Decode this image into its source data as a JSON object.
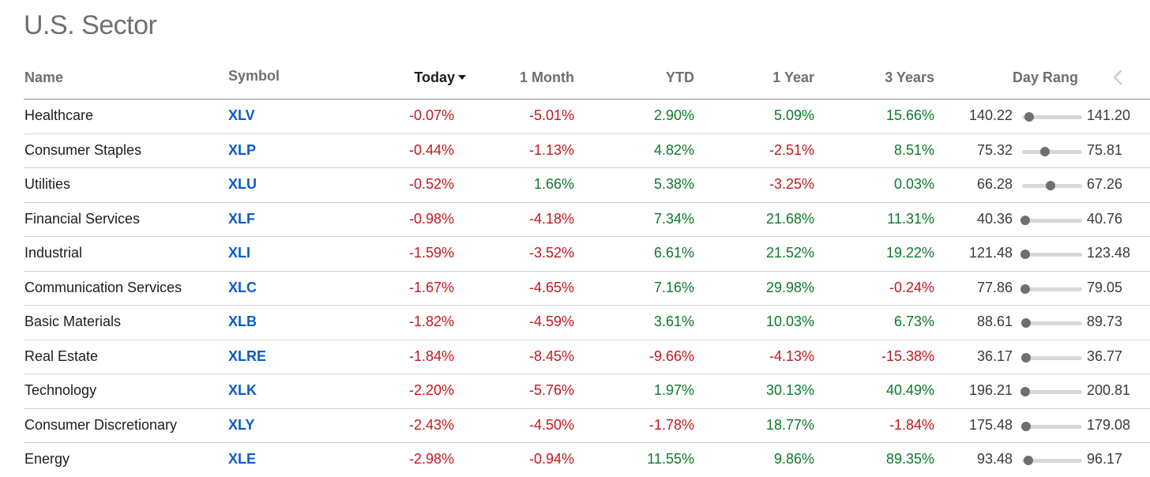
{
  "title": "U.S. Sector",
  "columns": {
    "name": "Name",
    "symbol": "Symbol",
    "today": "Today",
    "month": "1 Month",
    "ytd": "YTD",
    "year": "1 Year",
    "three_years": "3 Years",
    "day_range": "Day Rang"
  },
  "colors": {
    "positive": "#0b7a2a",
    "negative": "#c2171d",
    "symbol": "#0a5dc8"
  },
  "rows": [
    {
      "name": "Healthcare",
      "symbol": "XLV",
      "today": "-0.07%",
      "month": "-5.01%",
      "ytd": "2.90%",
      "year": "5.09%",
      "three_years": "15.66%",
      "low": "140.22",
      "high": "141.20",
      "position": 0.12
    },
    {
      "name": "Consumer Staples",
      "symbol": "XLP",
      "today": "-0.44%",
      "month": "-1.13%",
      "ytd": "4.82%",
      "year": "-2.51%",
      "three_years": "8.51%",
      "low": "75.32",
      "high": "75.81",
      "position": 0.38
    },
    {
      "name": "Utilities",
      "symbol": "XLU",
      "today": "-0.52%",
      "month": "1.66%",
      "ytd": "5.38%",
      "year": "-3.25%",
      "three_years": "0.03%",
      "low": "66.28",
      "high": "67.26",
      "position": 0.47
    },
    {
      "name": "Financial Services",
      "symbol": "XLF",
      "today": "-0.98%",
      "month": "-4.18%",
      "ytd": "7.34%",
      "year": "21.68%",
      "three_years": "11.31%",
      "low": "40.36",
      "high": "40.76",
      "position": 0.05
    },
    {
      "name": "Industrial",
      "symbol": "XLI",
      "today": "-1.59%",
      "month": "-3.52%",
      "ytd": "6.61%",
      "year": "21.52%",
      "three_years": "19.22%",
      "low": "121.48",
      "high": "123.48",
      "position": 0.05
    },
    {
      "name": "Communication Services",
      "symbol": "XLC",
      "today": "-1.67%",
      "month": "-4.65%",
      "ytd": "7.16%",
      "year": "29.98%",
      "three_years": "-0.24%",
      "low": "77.86",
      "high": "79.05",
      "position": 0.05
    },
    {
      "name": "Basic Materials",
      "symbol": "XLB",
      "today": "-1.82%",
      "month": "-4.59%",
      "ytd": "3.61%",
      "year": "10.03%",
      "three_years": "6.73%",
      "low": "88.61",
      "high": "89.73",
      "position": 0.07
    },
    {
      "name": "Real Estate",
      "symbol": "XLRE",
      "today": "-1.84%",
      "month": "-8.45%",
      "ytd": "-9.66%",
      "year": "-4.13%",
      "three_years": "-15.38%",
      "low": "36.17",
      "high": "36.77",
      "position": 0.07
    },
    {
      "name": "Technology",
      "symbol": "XLK",
      "today": "-2.20%",
      "month": "-5.76%",
      "ytd": "1.97%",
      "year": "30.13%",
      "three_years": "40.49%",
      "low": "196.21",
      "high": "200.81",
      "position": 0.05
    },
    {
      "name": "Consumer Discretionary",
      "symbol": "XLY",
      "today": "-2.43%",
      "month": "-4.50%",
      "ytd": "-1.78%",
      "year": "18.77%",
      "three_years": "-1.84%",
      "low": "175.48",
      "high": "179.08",
      "position": 0.07
    },
    {
      "name": "Energy",
      "symbol": "XLE",
      "today": "-2.98%",
      "month": "-0.94%",
      "ytd": "11.55%",
      "year": "9.86%",
      "three_years": "89.35%",
      "low": "93.48",
      "high": "96.17",
      "position": 0.1
    }
  ]
}
